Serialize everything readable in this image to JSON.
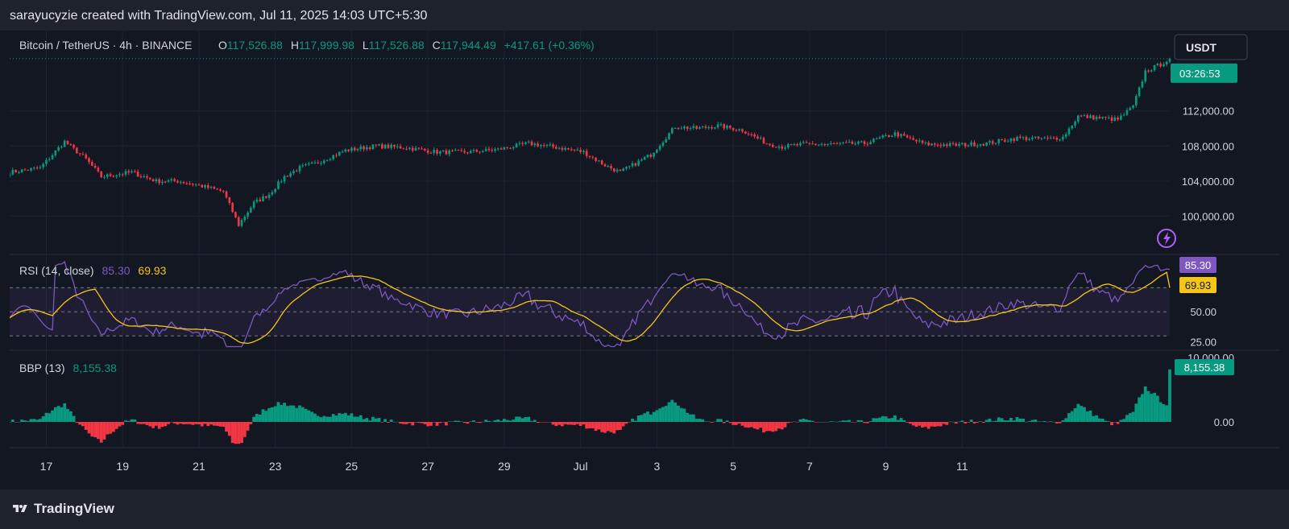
{
  "attribution": "sarayucyzie created with TradingView.com, Jul 11, 2025 14:03 UTC+5:30",
  "footer": {
    "brand": "TradingView",
    "logo_icon": "tradingview-logo-icon"
  },
  "colors": {
    "up": "#089981",
    "down": "#f23645",
    "rsi_line": "#7e57c2",
    "rsi_ma": "#f5c518",
    "background": "#131722"
  },
  "header": {
    "symbol": "Bitcoin / TetherUS · 4h · BINANCE",
    "open_label": "O",
    "open": "117,526.88",
    "high_label": "H",
    "high": "117,999.98",
    "low_label": "L",
    "low": "117,526.88",
    "close_label": "C",
    "close": "117,944.49",
    "change": "+417.61 (+0.36%)"
  },
  "currency_button": "USDT",
  "price_badge_time": "03:26:53",
  "rsi": {
    "label": "RSI (14, close)",
    "value": "85.30",
    "ma_value": "69.93"
  },
  "bbp": {
    "label": "BBP (13)",
    "value": "8,155.38"
  },
  "chart_data": [
    {
      "type": "candlestick",
      "title": "Bitcoin / TetherUS · 4h · BINANCE",
      "x_ticks": [
        "17",
        "19",
        "21",
        "23",
        "25",
        "27",
        "29",
        "Jul",
        "3",
        "5",
        "7",
        "9",
        "11"
      ],
      "y_ticks": [
        "100,000.00",
        "104,000.00",
        "108,000.00",
        "112,000.00"
      ],
      "y_tick_values": [
        100000,
        104000,
        108000,
        112000
      ],
      "ylim": [
        96000,
        120600
      ],
      "anchors": [
        [
          0,
          105000
        ],
        [
          10,
          105500
        ],
        [
          18,
          108500
        ],
        [
          25,
          106500
        ],
        [
          30,
          104500
        ],
        [
          40,
          105000
        ],
        [
          48,
          104000
        ],
        [
          55,
          104000
        ],
        [
          62,
          103500
        ],
        [
          70,
          102800
        ],
        [
          75,
          99000
        ],
        [
          80,
          101500
        ],
        [
          85,
          102500
        ],
        [
          90,
          104500
        ],
        [
          95,
          105500
        ],
        [
          100,
          106000
        ],
        [
          110,
          107500
        ],
        [
          120,
          108000
        ],
        [
          130,
          107800
        ],
        [
          140,
          107300
        ],
        [
          150,
          107300
        ],
        [
          160,
          107600
        ],
        [
          170,
          108300
        ],
        [
          180,
          107800
        ],
        [
          188,
          107300
        ],
        [
          195,
          105800
        ],
        [
          200,
          105000
        ],
        [
          210,
          107000
        ],
        [
          218,
          110200
        ],
        [
          225,
          110000
        ],
        [
          232,
          110300
        ],
        [
          240,
          109800
        ],
        [
          248,
          108300
        ],
        [
          253,
          107900
        ],
        [
          260,
          108200
        ],
        [
          270,
          108200
        ],
        [
          280,
          108300
        ],
        [
          290,
          109400
        ],
        [
          300,
          108200
        ],
        [
          310,
          108100
        ],
        [
          320,
          108300
        ],
        [
          330,
          108900
        ],
        [
          340,
          108800
        ],
        [
          345,
          109000
        ],
        [
          350,
          111400
        ],
        [
          357,
          111200
        ],
        [
          363,
          111000
        ],
        [
          368,
          112500
        ],
        [
          372,
          116500
        ],
        [
          377,
          117300
        ],
        [
          380,
          117944
        ]
      ],
      "last_price": 117944.49
    },
    {
      "type": "line",
      "title": "RSI (14, close)",
      "series": [
        {
          "name": "RSI",
          "current": 85.3
        },
        {
          "name": "RSI MA",
          "current": 69.93
        }
      ],
      "y_ticks": [
        "25.00",
        "50.00"
      ],
      "levels": [
        70,
        50,
        30
      ],
      "ylim": [
        20,
        95
      ]
    },
    {
      "type": "bar",
      "title": "BBP (13)",
      "y_ticks": [
        "10,000.00",
        "0.00"
      ],
      "current": 8155.38,
      "ylim": [
        -3500,
        10500
      ]
    }
  ]
}
